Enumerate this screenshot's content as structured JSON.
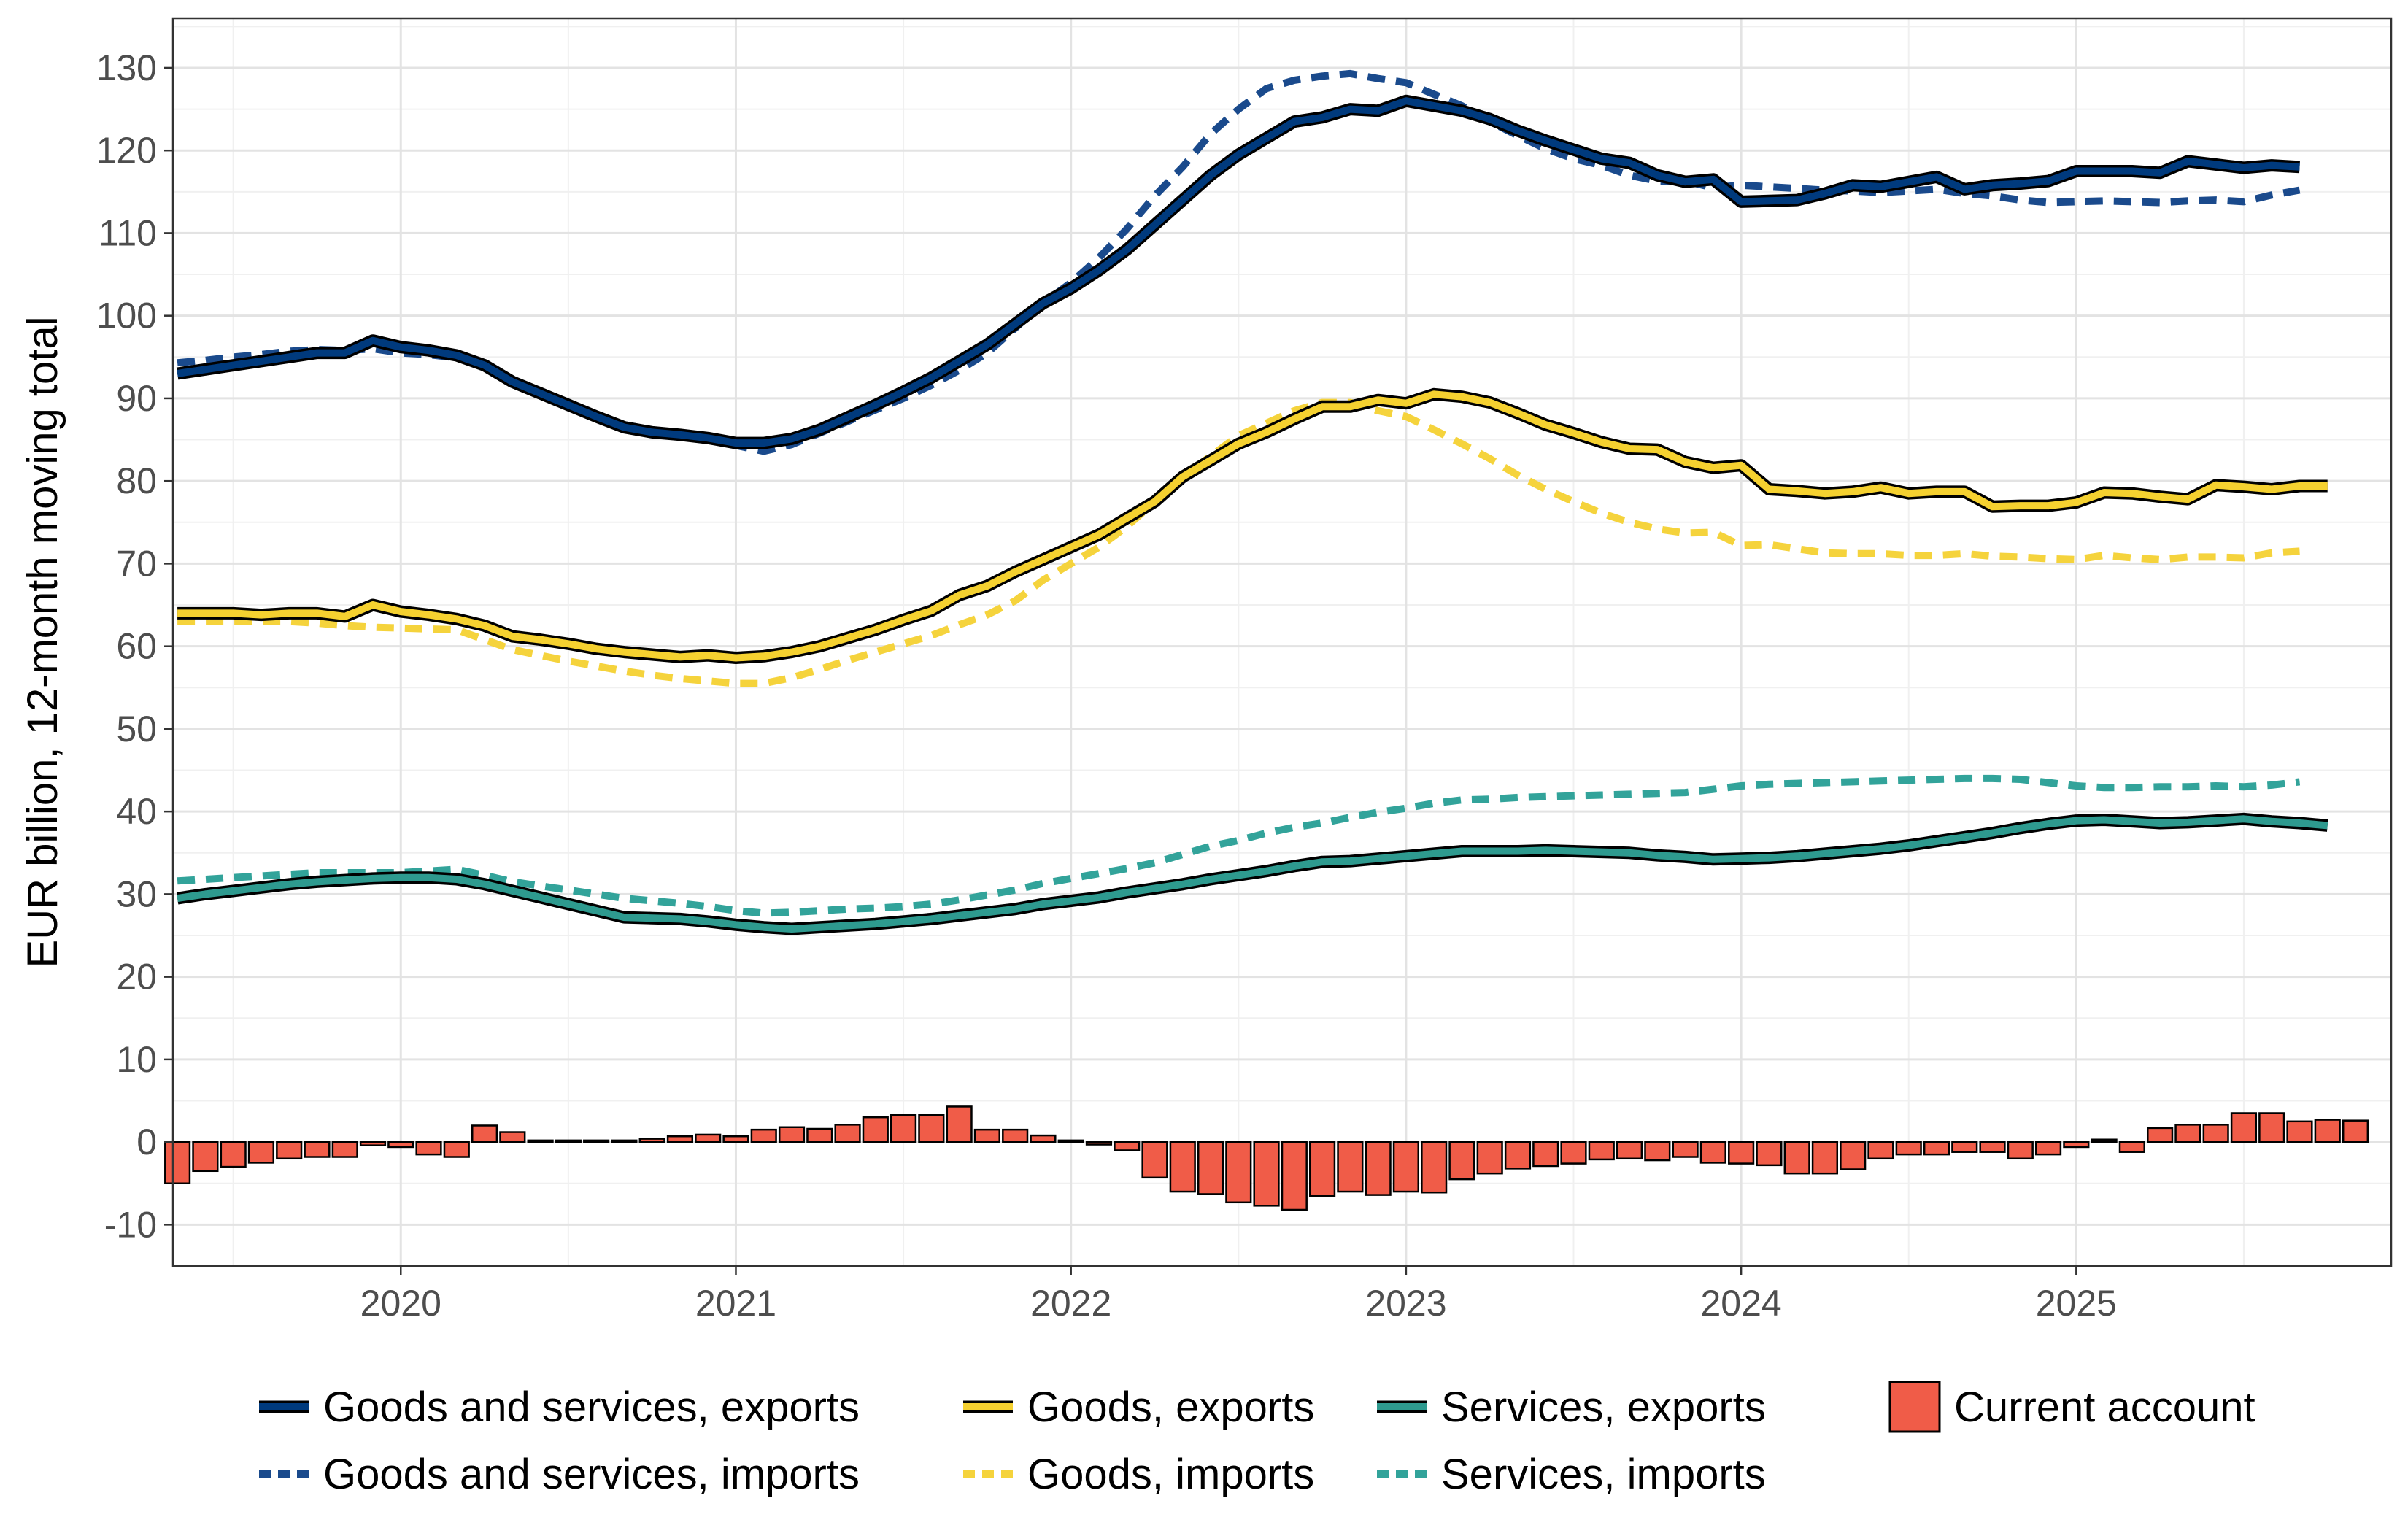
{
  "chart_data": {
    "type": "line",
    "title": "",
    "xlabel": "",
    "ylabel": "EUR billion, 12-month moving total",
    "ylim": [
      -15,
      136
    ],
    "yticks": [
      -10,
      0,
      10,
      20,
      30,
      40,
      50,
      60,
      70,
      80,
      90,
      100,
      110,
      120,
      130
    ],
    "ytick_labels": [
      "-10",
      "0",
      "10",
      "20",
      "30",
      "40",
      "50",
      "60",
      "70",
      "80",
      "90",
      "100",
      "110",
      "120",
      "130"
    ],
    "xlim": [
      2019.32,
      2025.94
    ],
    "xticks": [
      2020,
      2021,
      2022,
      2023,
      2024,
      2025
    ],
    "xtick_labels": [
      "2020",
      "2021",
      "2022",
      "2023",
      "2024",
      "2025"
    ],
    "grid": true,
    "legend_position": "bottom",
    "start": [
      2019,
      5
    ],
    "series": [
      {
        "name": "Goods and services, exports",
        "kind": "line",
        "style": "solid",
        "color": "#003a7d",
        "legend_row": 0,
        "legend_col": 0,
        "values": [
          93,
          93.5,
          94,
          94.5,
          95,
          95.5,
          95.5,
          97,
          96.2,
          95.8,
          95.2,
          94,
          92,
          90.6,
          89.2,
          87.8,
          86.5,
          85.9,
          85.6,
          85.2,
          84.6,
          84.6,
          85.1,
          86.2,
          87.7,
          89.2,
          90.8,
          92.5,
          94.5,
          96.5,
          99,
          101.5,
          103.3,
          105.5,
          108,
          111,
          114,
          117,
          119.5,
          121.5,
          123.5,
          124,
          125,
          124.8,
          126,
          125.4,
          124.8,
          123.8,
          122.4,
          121.2,
          120.1,
          119,
          118.5,
          117,
          116.2,
          116.5,
          113.8,
          113.9,
          114,
          114.8,
          115.8,
          115.6,
          116.2,
          116.8,
          115.3,
          115.8,
          116,
          116.3,
          117.5,
          117.5,
          117.5,
          117.3,
          118.7,
          118.3,
          117.9,
          118.2,
          118
        ]
      },
      {
        "name": "Goods and services, imports",
        "kind": "line",
        "style": "dashed",
        "color": "#1a4a8c",
        "legend_row": 1,
        "legend_col": 0,
        "values": [
          94.3,
          94.6,
          95,
          95.3,
          95.7,
          95.9,
          95.8,
          96,
          95.5,
          95.3,
          94.9,
          93.8,
          92,
          90.4,
          89,
          87.8,
          86.8,
          86.2,
          85.8,
          85.1,
          84.3,
          83.6,
          84.4,
          85.8,
          87.2,
          88.6,
          90,
          91.6,
          93.4,
          95.5,
          98.5,
          101.5,
          104,
          107,
          110.5,
          114.5,
          118,
          122,
          125,
          127.5,
          128.5,
          129,
          129.3,
          128.7,
          128.2,
          126.8,
          125.4,
          123.5,
          121.8,
          120.2,
          119,
          118.2,
          117,
          116.3,
          116.3,
          115.5,
          115.8,
          115.6,
          115.4,
          115.2,
          115.1,
          114.9,
          115.1,
          115.3,
          114.8,
          114.5,
          114,
          113.7,
          113.8,
          113.9,
          113.8,
          113.7,
          113.9,
          114,
          113.8,
          114.6,
          115.2
        ]
      },
      {
        "name": "Goods, exports",
        "kind": "line",
        "style": "solid",
        "color": "#f5d130",
        "legend_row": 0,
        "legend_col": 1,
        "values": [
          64,
          64,
          64,
          63.8,
          64,
          64,
          63.6,
          65,
          64.2,
          63.8,
          63.3,
          62.5,
          61.2,
          60.8,
          60.3,
          59.7,
          59.3,
          59,
          58.7,
          58.9,
          58.6,
          58.8,
          59.3,
          60,
          61,
          62,
          63.2,
          64.3,
          66.2,
          67.3,
          69,
          70.5,
          72,
          73.5,
          75.5,
          77.5,
          80.5,
          82.5,
          84.5,
          85.9,
          87.5,
          89,
          89,
          89.8,
          89.4,
          90.5,
          90.2,
          89.5,
          88.2,
          86.8,
          85.8,
          84.7,
          83.9,
          83.8,
          82.3,
          81.6,
          81.9,
          79,
          78.8,
          78.5,
          78.7,
          79.2,
          78.5,
          78.7,
          78.7,
          76.9,
          77,
          77,
          77.4,
          78.6,
          78.5,
          78.1,
          77.8,
          79.5,
          79.3,
          79,
          79.4,
          79.4
        ]
      },
      {
        "name": "Goods, imports",
        "kind": "line",
        "style": "dashed",
        "color": "#f5d33c",
        "legend_row": 1,
        "legend_col": 1,
        "values": [
          63,
          63,
          63,
          63,
          63,
          62.8,
          62.5,
          62.3,
          62.2,
          62.1,
          62,
          60.8,
          59.6,
          58.9,
          58.2,
          57.6,
          57,
          56.5,
          56.1,
          55.8,
          55.5,
          55.5,
          56.2,
          57.2,
          58.3,
          59.3,
          60.3,
          61.3,
          62.6,
          63.8,
          65.5,
          68,
          70,
          72,
          74.5,
          77.5,
          80.5,
          83,
          85.5,
          87,
          88.5,
          89.5,
          89.5,
          88.5,
          87.8,
          86.2,
          84.5,
          82.7,
          80.7,
          79,
          77.5,
          76.1,
          75,
          74.2,
          73.7,
          73.8,
          72.2,
          72.3,
          71.8,
          71.3,
          71.2,
          71.2,
          71,
          71,
          71.2,
          70.9,
          70.8,
          70.6,
          70.5,
          71,
          70.7,
          70.5,
          70.8,
          70.8,
          70.7,
          71.3,
          71.5
        ]
      },
      {
        "name": "Services, exports",
        "kind": "line",
        "style": "solid",
        "color": "#2e9a8f",
        "legend_row": 0,
        "legend_col": 2,
        "values": [
          29.5,
          30,
          30.4,
          30.8,
          31.2,
          31.5,
          31.7,
          31.9,
          32,
          32,
          31.8,
          31.2,
          30.4,
          29.6,
          28.8,
          28,
          27.2,
          27.1,
          27,
          26.7,
          26.3,
          26,
          25.8,
          26,
          26.2,
          26.4,
          26.7,
          27,
          27.4,
          27.8,
          28.2,
          28.8,
          29.2,
          29.6,
          30.2,
          30.7,
          31.2,
          31.8,
          32.3,
          32.8,
          33.4,
          33.9,
          34,
          34.3,
          34.6,
          34.9,
          35.2,
          35.2,
          35.2,
          35.3,
          35.2,
          35.1,
          35,
          34.7,
          34.5,
          34.2,
          34.3,
          34.4,
          34.6,
          34.9,
          35.2,
          35.5,
          35.9,
          36.4,
          36.9,
          37.4,
          38,
          38.5,
          38.9,
          39,
          38.8,
          38.6,
          38.7,
          38.9,
          39.1,
          38.8,
          38.6,
          38.3
        ]
      },
      {
        "name": "Services, imports",
        "kind": "line",
        "style": "dashed",
        "color": "#32a39a",
        "legend_row": 1,
        "legend_col": 2,
        "values": [
          31.6,
          31.8,
          32,
          32.2,
          32.4,
          32.6,
          32.6,
          32.6,
          32.6,
          32.8,
          33,
          32.3,
          31.5,
          31,
          30.5,
          30,
          29.5,
          29.2,
          28.9,
          28.5,
          28,
          27.7,
          27.8,
          28,
          28.2,
          28.3,
          28.5,
          28.8,
          29.3,
          29.9,
          30.5,
          31.3,
          31.9,
          32.5,
          33.1,
          33.8,
          34.8,
          35.8,
          36.5,
          37.4,
          38.1,
          38.6,
          39.3,
          39.9,
          40.4,
          41,
          41.4,
          41.5,
          41.7,
          41.8,
          41.9,
          42,
          42.1,
          42.2,
          42.3,
          42.7,
          43.1,
          43.3,
          43.4,
          43.5,
          43.6,
          43.7,
          43.8,
          43.9,
          44,
          44,
          43.9,
          43.5,
          43.1,
          42.9,
          42.9,
          43,
          43,
          43.1,
          43,
          43.2,
          43.6
        ]
      },
      {
        "name": "Current account",
        "kind": "bar",
        "color": "#f05c48",
        "legend_row": 0,
        "legend_col": 3,
        "values": [
          -5,
          -3.5,
          -3,
          -2.5,
          -2,
          -1.8,
          -1.8,
          -0.4,
          -0.6,
          -1.5,
          -1.8,
          2,
          1.2,
          0.2,
          0.2,
          0.2,
          0.2,
          0.4,
          0.7,
          0.9,
          0.7,
          1.5,
          1.8,
          1.6,
          2.1,
          3,
          3.3,
          3.3,
          4.3,
          1.5,
          1.5,
          0.8,
          0.2,
          -0.3,
          -1,
          -4.3,
          -6,
          -6.3,
          -7.3,
          -7.7,
          -8.2,
          -6.5,
          -6,
          -6.4,
          -6,
          -6.1,
          -4.5,
          -3.8,
          -3.2,
          -2.9,
          -2.6,
          -2.1,
          -2,
          -2.2,
          -1.8,
          -2.5,
          -2.6,
          -2.8,
          -3.8,
          -3.8,
          -3.3,
          -2,
          -1.5,
          -1.5,
          -1.2,
          -1.2,
          -2,
          -1.5,
          -0.6,
          0.3,
          -1.2,
          1.7,
          2.1,
          2.1,
          3.5,
          3.5,
          2.5,
          2.7,
          2.6
        ]
      }
    ]
  }
}
